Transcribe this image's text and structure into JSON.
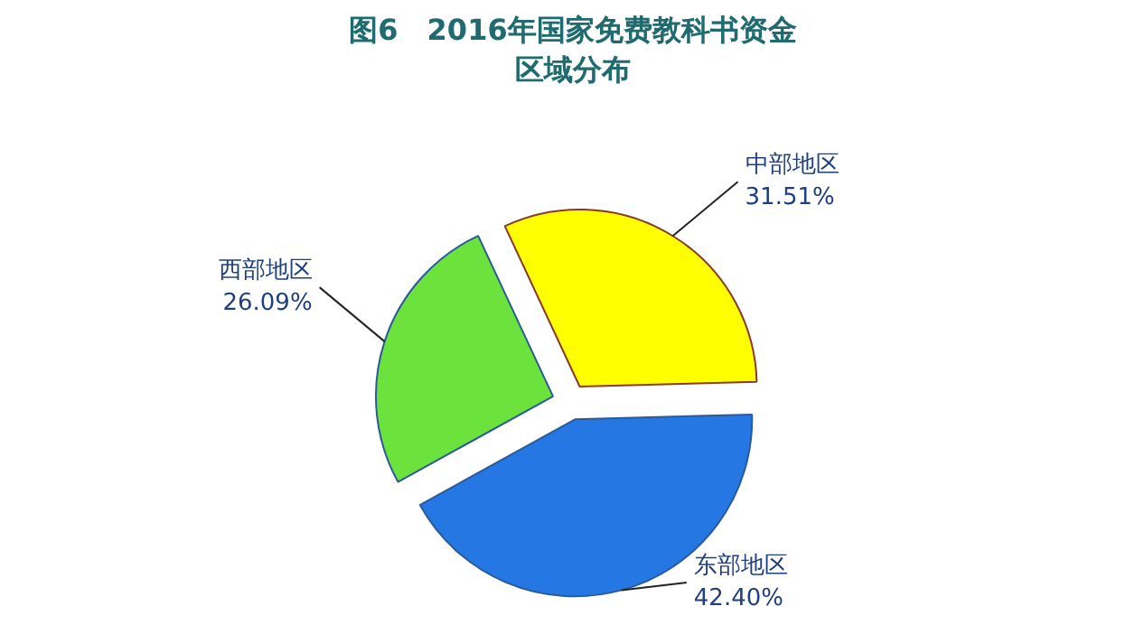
{
  "chart_data": {
    "type": "pie",
    "title": "图6　2016年国家免费教科书资金区域分布",
    "categories": [
      "中部地区",
      "东部地区",
      "西部地区"
    ],
    "values": [
      31.51,
      42.4,
      26.09
    ],
    "value_labels": [
      "31.51%",
      "42.40%",
      "26.09%"
    ],
    "colors": [
      "#ffff00",
      "#2577e3",
      "#6ce23c"
    ]
  }
}
